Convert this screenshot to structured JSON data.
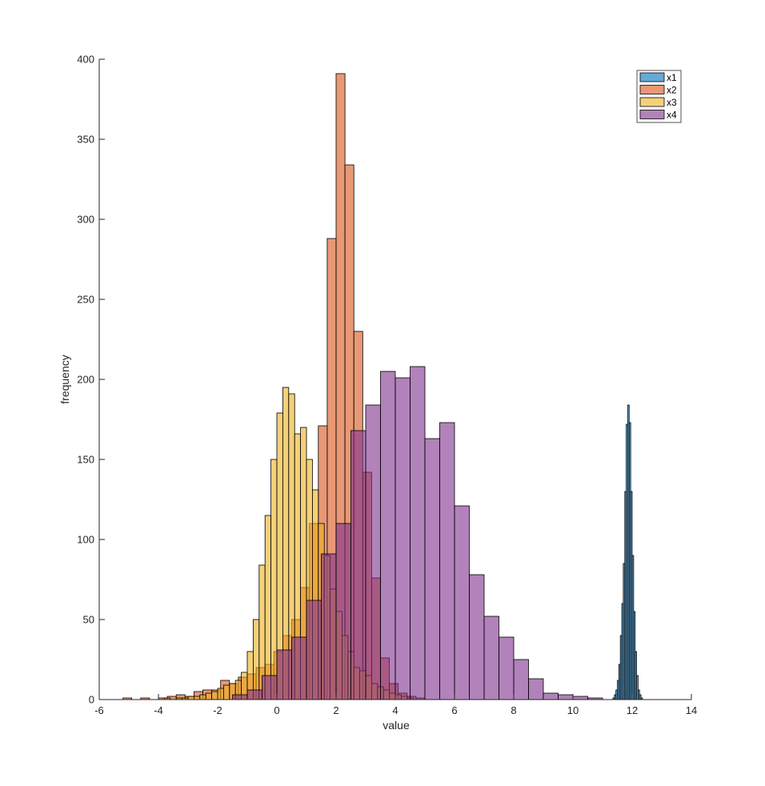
{
  "chart_data": {
    "type": "bar",
    "subtype": "overlaid-histogram",
    "xlabel": "value",
    "ylabel": "frequency",
    "xlim": [
      -6,
      14
    ],
    "ylim": [
      0,
      400
    ],
    "xticks": [
      "-6",
      "-4",
      "-2",
      "0",
      "2",
      "4",
      "6",
      "8",
      "10",
      "12",
      "14"
    ],
    "yticks": [
      "0",
      "50",
      "100",
      "150",
      "200",
      "250",
      "300",
      "350",
      "400"
    ],
    "grid": false,
    "legend_position": "top-right",
    "series": [
      {
        "name": "x1",
        "color": "#0072BD",
        "opacity": 0.6,
        "bin_edges": [
          11.35,
          11.4,
          11.45,
          11.5,
          11.55,
          11.6,
          11.65,
          11.7,
          11.75,
          11.8,
          11.85,
          11.9,
          11.95,
          12.0,
          12.05,
          12.1,
          12.15,
          12.2,
          12.25,
          12.3,
          12.35
        ],
        "counts": [
          1,
          3,
          6,
          12,
          22,
          40,
          60,
          85,
          130,
          172,
          184,
          173,
          130,
          90,
          55,
          30,
          15,
          6,
          3,
          1
        ]
      },
      {
        "name": "x2",
        "color": "#D95319",
        "opacity": 0.6,
        "bin_start": -5.2,
        "bin_width": 0.3,
        "counts": [
          1,
          0,
          1,
          0,
          1,
          2,
          3,
          2,
          5,
          6,
          6,
          12,
          10,
          14,
          16,
          20,
          22,
          30,
          40,
          50,
          70,
          110,
          171,
          288,
          391,
          334,
          230,
          142,
          76,
          26,
          10,
          4,
          2,
          1
        ]
      },
      {
        "name": "x3",
        "color": "#EDB120",
        "opacity": 0.6,
        "bin_start": -3.8,
        "bin_width": 0.2,
        "counts": [
          1,
          0,
          1,
          1,
          2,
          2,
          3,
          4,
          5,
          7,
          9,
          10,
          12,
          17,
          30,
          50,
          84,
          115,
          150,
          179,
          195,
          191,
          166,
          170,
          150,
          131,
          110,
          90,
          69,
          55,
          40,
          30,
          20,
          18,
          15,
          10,
          8,
          6,
          4,
          3,
          2,
          1
        ]
      },
      {
        "name": "x4",
        "color": "#7E2F8E",
        "opacity": 0.6,
        "bin_start": -1.5,
        "bin_width": 0.5,
        "counts": [
          3,
          6,
          15,
          31,
          39,
          62,
          91,
          110,
          168,
          184,
          205,
          201,
          208,
          163,
          173,
          121,
          78,
          52,
          39,
          25,
          13,
          4,
          3,
          2,
          1
        ]
      }
    ]
  }
}
